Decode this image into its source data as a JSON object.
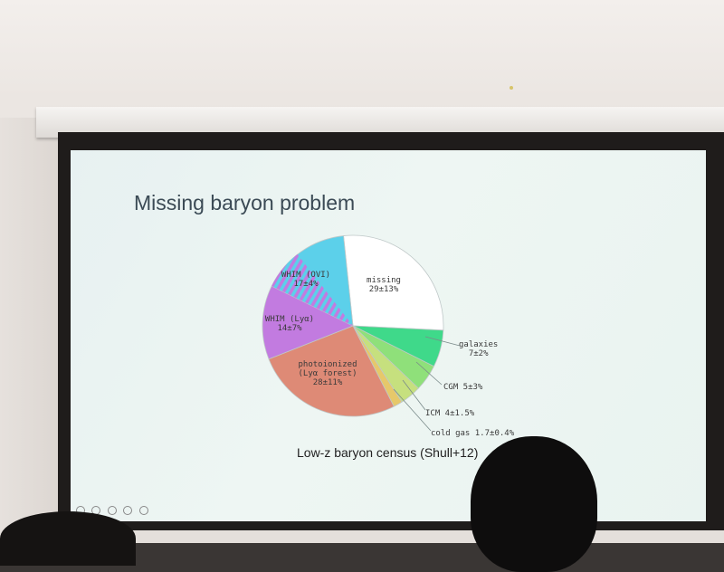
{
  "slide": {
    "title": "Missing baryon problem",
    "caption": "Low-z baryon census (Shull+12)"
  },
  "chart_data": {
    "type": "pie",
    "title": "Missing baryon problem",
    "slices": [
      {
        "label": "missing",
        "value_text": "29±13%",
        "value": 29,
        "color": "#ffffff"
      },
      {
        "label": "galaxies",
        "value_text": "7±2%",
        "value": 7,
        "color": "#3fd98a"
      },
      {
        "label": "CGM",
        "value_text": "5±3%",
        "value": 5,
        "color": "#8fe07a"
      },
      {
        "label": "ICM",
        "value_text": "4±1.5%",
        "value": 4,
        "color": "#c6e07e"
      },
      {
        "label": "cold gas",
        "value_text": "1.7±0.4%",
        "value": 1.7,
        "color": "#e6c86a"
      },
      {
        "label": "photoionized (Lyα forest)",
        "value_text": "28±11%",
        "value": 28,
        "color": "#de8a76"
      },
      {
        "label": "WHIM (Lyα)",
        "value_text": "14±7%",
        "value": 14,
        "color": "#c27be0"
      },
      {
        "label": "WHIM (OVI)",
        "value_text": "17±4%",
        "value": 17,
        "color": "#5cd0ea"
      }
    ]
  },
  "labels": {
    "missing": [
      "missing",
      "29±13%"
    ],
    "whim_ovi": [
      "WHIM (OVI)",
      "17±4%"
    ],
    "whim_lya": [
      "WHIM (Lyα)",
      "14±7%"
    ],
    "photo": [
      "photoionized",
      "(Lyα forest)",
      "28±11%"
    ],
    "galaxies": [
      "galaxies",
      "7±2%"
    ],
    "cgm": "CGM 5±3%",
    "icm": "ICM 4±1.5%",
    "cold": "cold gas 1.7±0.4%"
  }
}
